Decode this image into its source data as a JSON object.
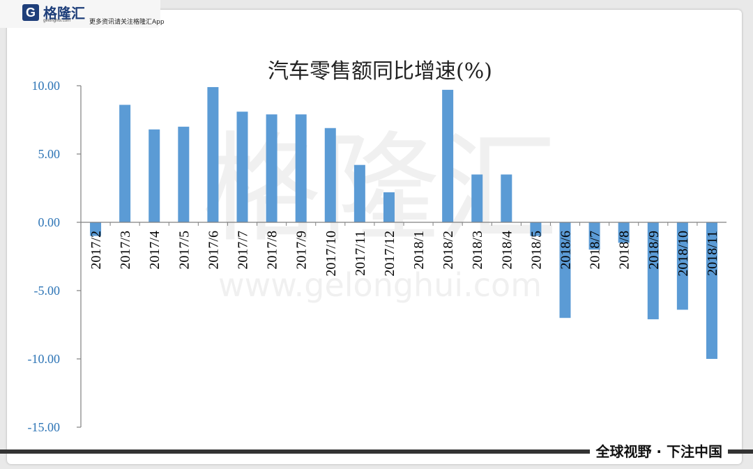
{
  "brand": {
    "logo_letter": "G",
    "name": "格隆汇",
    "url": "gelonghui.com",
    "tagline": "更多资讯请关注格隆汇App",
    "footer": "全球视野 · 下注中国",
    "watermark_name": "格隆汇",
    "watermark_url": "www.gelonghui.com"
  },
  "colors": {
    "bar": "#5b9bd5",
    "axis": "#808080",
    "tick_text": "#2e75b6"
  },
  "chart_data": {
    "type": "bar",
    "title": "汽车零售额同比增速(%)",
    "categories": [
      "2017/2",
      "2017/3",
      "2017/4",
      "2017/5",
      "2017/6",
      "2017/7",
      "2017/8",
      "2017/9",
      "2017/10",
      "2017/11",
      "2017/12",
      "2018/1",
      "2018/2",
      "2018/3",
      "2018/4",
      "2018/5",
      "2018/6",
      "2018/7",
      "2018/8",
      "2018/9",
      "2018/10",
      "2018/11"
    ],
    "values": [
      -1.0,
      8.6,
      6.8,
      7.0,
      9.9,
      8.1,
      7.9,
      7.9,
      6.9,
      4.2,
      2.2,
      0,
      9.7,
      3.5,
      3.5,
      -1.0,
      -7.0,
      -2.0,
      -1.5,
      -7.1,
      -6.4,
      -10.0
    ],
    "yticks": [
      "10.00",
      "5.00",
      "0.00",
      "-5.00",
      "-10.00",
      "-15.00"
    ],
    "ylim": [
      -15,
      10
    ],
    "xlabel": "",
    "ylabel": "",
    "grid": false,
    "legend": "none"
  }
}
